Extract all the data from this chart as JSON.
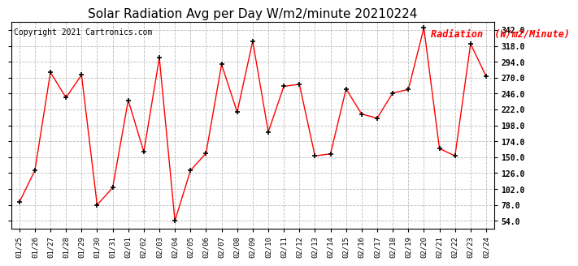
{
  "title": "Solar Radiation Avg per Day W/m2/minute 20210224",
  "copyright": "Copyright 2021 Cartronics.com",
  "legend_label": "Radiation  (W/m2/Minute)",
  "dates": [
    "01/25",
    "01/26",
    "01/27",
    "01/28",
    "01/29",
    "01/30",
    "01/31",
    "02/01",
    "02/02",
    "02/03",
    "02/04",
    "02/05",
    "02/06",
    "02/07",
    "02/08",
    "02/09",
    "02/10",
    "02/11",
    "02/12",
    "02/13",
    "02/14",
    "02/15",
    "02/16",
    "02/17",
    "02/18",
    "02/19",
    "02/20",
    "02/21",
    "02/22",
    "02/23",
    "02/24"
  ],
  "values": [
    82,
    130,
    278,
    240,
    274,
    78,
    104,
    236,
    158,
    300,
    54,
    130,
    156,
    290,
    218,
    325,
    188,
    257,
    260,
    152,
    155,
    253,
    215,
    209,
    247,
    252,
    345,
    163,
    152,
    321,
    272
  ],
  "ylim": [
    42,
    354
  ],
  "yticks": [
    54.0,
    78.0,
    102.0,
    126.0,
    150.0,
    174.0,
    198.0,
    222.0,
    246.0,
    270.0,
    294.0,
    318.0,
    342.0
  ],
  "line_color": "red",
  "marker": "+",
  "marker_color": "black",
  "grid_color": "#bbbbbb",
  "bg_color": "#ffffff",
  "title_fontsize": 11,
  "copyright_fontsize": 7,
  "legend_fontsize": 8.5
}
